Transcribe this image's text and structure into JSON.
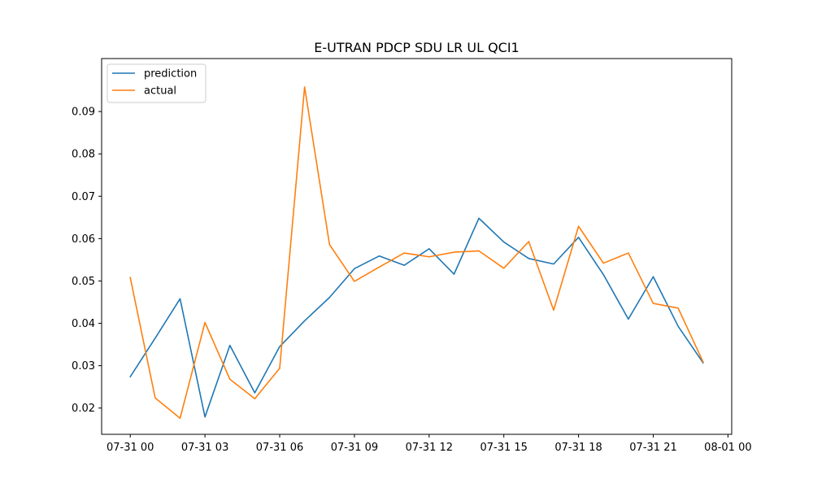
{
  "chart_data": {
    "type": "line",
    "title": "E-UTRAN PDCP SDU LR UL QCI1",
    "xlabel": "",
    "ylabel": "",
    "x": [
      "07-31 00:00",
      "07-31 01:00",
      "07-31 02:00",
      "07-31 03:00",
      "07-31 04:00",
      "07-31 05:00",
      "07-31 06:00",
      "07-31 07:00",
      "07-31 08:00",
      "07-31 09:00",
      "07-31 10:00",
      "07-31 11:00",
      "07-31 12:00",
      "07-31 13:00",
      "07-31 14:00",
      "07-31 15:00",
      "07-31 16:00",
      "07-31 17:00",
      "07-31 18:00",
      "07-31 19:00",
      "07-31 20:00",
      "07-31 21:00",
      "07-31 22:00",
      "07-31 23:00"
    ],
    "xticks": [
      "07-31 00",
      "07-31 03",
      "07-31 06",
      "07-31 09",
      "07-31 12",
      "07-31 15",
      "07-31 18",
      "07-31 21",
      "08-01 00"
    ],
    "xlim": [
      "07-30 22:51",
      "08-01 00:09"
    ],
    "ylim": [
      0.0138,
      0.1025
    ],
    "yticks": [
      "0.02",
      "0.03",
      "0.04",
      "0.05",
      "0.06",
      "0.07",
      "0.08",
      "0.09"
    ],
    "legend_position": "top-left",
    "grid": false,
    "series": [
      {
        "name": "prediction",
        "color": "#1f77b4",
        "values": [
          0.0274,
          0.0365,
          0.0458,
          0.0179,
          0.0348,
          0.0236,
          0.0345,
          0.0406,
          0.0461,
          0.0529,
          0.0559,
          0.0537,
          0.0576,
          0.0516,
          0.0648,
          0.0592,
          0.0553,
          0.054,
          0.0603,
          0.0515,
          0.041,
          0.051,
          0.0393,
          0.0307
        ]
      },
      {
        "name": "actual",
        "color": "#ff7f0e",
        "values": [
          0.0508,
          0.0224,
          0.0176,
          0.0402,
          0.0268,
          0.0222,
          0.0294,
          0.0958,
          0.0586,
          0.0499,
          0.0533,
          0.0566,
          0.0557,
          0.0568,
          0.0571,
          0.053,
          0.0593,
          0.0431,
          0.0629,
          0.0542,
          0.0566,
          0.0447,
          0.0436,
          0.0309
        ]
      }
    ]
  }
}
